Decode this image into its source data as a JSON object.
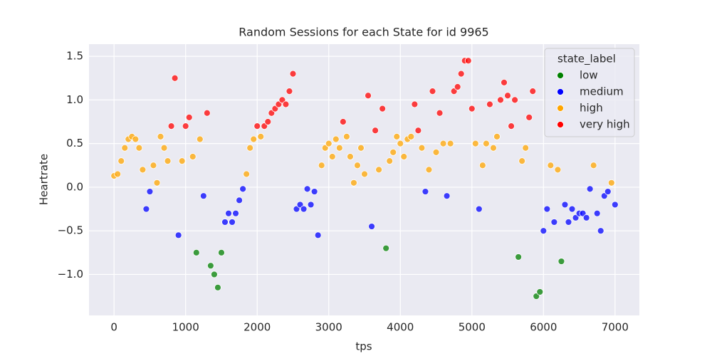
{
  "chart_data": {
    "type": "scatter",
    "title": "Random Sessions for each State for id 9965",
    "x_label": "tps",
    "y_label": "Heartrate",
    "xlim": [
      -350,
      7340
    ],
    "ylim": [
      -1.47,
      1.64
    ],
    "xticks": [
      0,
      1000,
      2000,
      3000,
      4000,
      5000,
      6000,
      7000
    ],
    "yticks": [
      {
        "value": -1.0,
        "label": "−1.0"
      },
      {
        "value": -0.5,
        "label": "−0.5"
      },
      {
        "value": 0.0,
        "label": "0.0"
      },
      0.5,
      {
        "value": 1.0,
        "label": "1.0"
      },
      1.5
    ],
    "grid": true,
    "legend_title": "state_label",
    "legend_position": "upper right",
    "series": [
      {
        "name": "low",
        "color": "#008000",
        "x": [
          1150,
          1350,
          1400,
          1450,
          1500,
          3800,
          5650,
          5900,
          5950,
          6250
        ],
        "values": [
          -0.75,
          -0.9,
          -1.0,
          -1.15,
          -0.75,
          -0.7,
          -0.8,
          -1.25,
          -1.2,
          -0.85
        ]
      },
      {
        "name": "medium",
        "color": "#0000ff",
        "x": [
          450,
          500,
          900,
          1250,
          1550,
          1600,
          1650,
          1700,
          1750,
          1800,
          2550,
          2600,
          2650,
          2700,
          2750,
          2800,
          2850,
          3600,
          4350,
          4650,
          5100,
          6000,
          6050,
          6150,
          6300,
          6350,
          6400,
          6450,
          6500,
          6550,
          6600,
          6650,
          6750,
          6800,
          6850,
          6900,
          7000
        ],
        "values": [
          -0.25,
          -0.05,
          -0.55,
          -0.1,
          -0.4,
          -0.3,
          -0.4,
          -0.3,
          -0.15,
          -0.02,
          -0.25,
          -0.2,
          -0.25,
          -0.02,
          -0.2,
          -0.05,
          -0.55,
          -0.45,
          -0.05,
          -0.1,
          -0.25,
          -0.5,
          -0.25,
          -0.4,
          -0.2,
          -0.4,
          -0.25,
          -0.35,
          -0.3,
          -0.3,
          -0.35,
          -0.02,
          -0.3,
          -0.5,
          -0.1,
          -0.05,
          -0.2
        ]
      },
      {
        "name": "high",
        "color": "#ffa500",
        "x": [
          0,
          50,
          100,
          150,
          200,
          250,
          300,
          350,
          400,
          550,
          600,
          650,
          700,
          750,
          950,
          1100,
          1200,
          1850,
          1900,
          1950,
          2050,
          2900,
          2950,
          3000,
          3050,
          3100,
          3150,
          3250,
          3300,
          3350,
          3400,
          3450,
          3500,
          3700,
          3850,
          3900,
          3950,
          4000,
          4050,
          4100,
          4150,
          4300,
          4400,
          4500,
          4600,
          4700,
          5050,
          5150,
          5200,
          5300,
          5350,
          5700,
          5750,
          6100,
          6200,
          6700,
          6950
        ],
        "values": [
          0.13,
          0.15,
          0.3,
          0.45,
          0.55,
          0.58,
          0.55,
          0.45,
          0.2,
          0.25,
          0.05,
          0.58,
          0.45,
          0.3,
          0.3,
          0.35,
          0.55,
          0.15,
          0.45,
          0.55,
          0.58,
          0.25,
          0.45,
          0.5,
          0.35,
          0.55,
          0.45,
          0.58,
          0.35,
          0.05,
          0.25,
          0.45,
          0.15,
          0.2,
          0.3,
          0.4,
          0.58,
          0.5,
          0.35,
          0.55,
          0.58,
          0.45,
          0.2,
          0.4,
          0.5,
          0.5,
          0.5,
          0.25,
          0.5,
          0.45,
          0.58,
          0.3,
          0.45,
          0.25,
          0.2,
          0.25,
          0.05
        ]
      },
      {
        "name": "very high",
        "color": "#ff0000",
        "x": [
          800,
          850,
          1000,
          1050,
          1300,
          2000,
          2100,
          2150,
          2200,
          2250,
          2300,
          2350,
          2400,
          2450,
          2500,
          3200,
          3550,
          3650,
          3750,
          4200,
          4250,
          4450,
          4550,
          4750,
          4800,
          4850,
          4900,
          4950,
          5000,
          5250,
          5400,
          5450,
          5500,
          5550,
          5600,
          5800,
          5850
        ],
        "values": [
          0.7,
          1.25,
          0.7,
          0.8,
          0.85,
          0.7,
          0.7,
          0.75,
          0.85,
          0.9,
          0.95,
          1.0,
          0.95,
          1.1,
          1.3,
          0.75,
          1.05,
          0.65,
          0.9,
          0.95,
          0.65,
          1.1,
          0.85,
          1.1,
          1.15,
          1.3,
          1.45,
          1.45,
          0.9,
          0.95,
          1.0,
          1.2,
          1.05,
          0.7,
          1.0,
          0.8,
          1.1
        ]
      }
    ]
  }
}
